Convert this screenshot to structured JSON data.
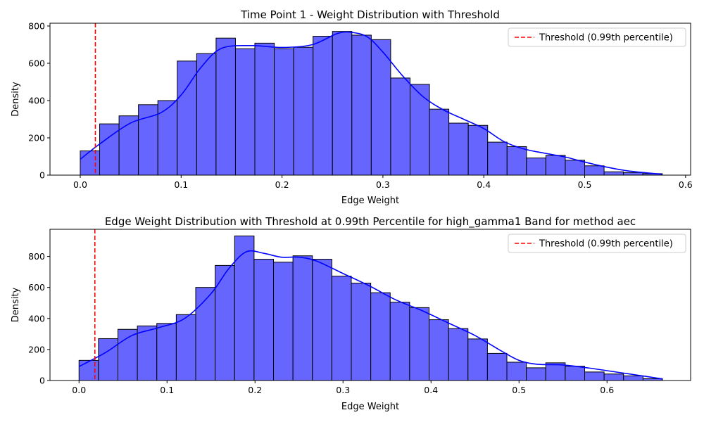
{
  "chart_data": [
    {
      "type": "histogram",
      "title": "Time Point 1 - Weight Distribution with Threshold",
      "xlabel": "Edge Weight",
      "ylabel": "Density",
      "xlim": [
        -0.03,
        0.605
      ],
      "ylim": [
        0,
        815
      ],
      "xticks": [
        0.0,
        0.1,
        0.2,
        0.3,
        0.4,
        0.5,
        0.6
      ],
      "xtick_labels": [
        "0.0",
        "0.1",
        "0.2",
        "0.3",
        "0.4",
        "0.5",
        "0.6"
      ],
      "yticks": [
        0,
        200,
        400,
        600,
        800
      ],
      "ytick_labels": [
        "0",
        "200",
        "400",
        "600",
        "800"
      ],
      "bin_start": 0.0,
      "bin_width": 0.01923,
      "values": [
        130,
        275,
        318,
        378,
        400,
        612,
        652,
        735,
        678,
        708,
        678,
        686,
        745,
        771,
        751,
        727,
        521,
        487,
        354,
        279,
        267,
        177,
        153,
        92,
        106,
        80,
        50,
        18,
        14,
        8
      ],
      "kde": [
        [
          0.0,
          85
        ],
        [
          0.02,
          170
        ],
        [
          0.05,
          280
        ],
        [
          0.08,
          335
        ],
        [
          0.1,
          430
        ],
        [
          0.12,
          580
        ],
        [
          0.14,
          680
        ],
        [
          0.17,
          695
        ],
        [
          0.2,
          685
        ],
        [
          0.23,
          700
        ],
        [
          0.255,
          760
        ],
        [
          0.27,
          765
        ],
        [
          0.285,
          740
        ],
        [
          0.3,
          660
        ],
        [
          0.32,
          530
        ],
        [
          0.34,
          420
        ],
        [
          0.36,
          350
        ],
        [
          0.38,
          300
        ],
        [
          0.4,
          250
        ],
        [
          0.42,
          180
        ],
        [
          0.44,
          140
        ],
        [
          0.46,
          118
        ],
        [
          0.48,
          98
        ],
        [
          0.5,
          70
        ],
        [
          0.52,
          45
        ],
        [
          0.54,
          25
        ],
        [
          0.56,
          13
        ],
        [
          0.577,
          5
        ]
      ],
      "threshold": 0.015,
      "legend": {
        "label": "Threshold (0.99th percentile)",
        "position": "top-right"
      },
      "colors": {
        "bar_fill": "#6666ff",
        "bar_edge": "#000000",
        "kde": "#0000ff",
        "threshold": "#ff0000"
      },
      "grid": false
    },
    {
      "type": "histogram",
      "title": "Edge Weight Distribution with Threshold at 0.99th Percentile for high_gamma1 Band for method aec",
      "xlabel": "Edge Weight",
      "ylabel": "Density",
      "xlim": [
        -0.033,
        0.695
      ],
      "ylim": [
        0,
        975
      ],
      "xticks": [
        0.0,
        0.1,
        0.2,
        0.3,
        0.4,
        0.5,
        0.6
      ],
      "xtick_labels": [
        "0.0",
        "0.1",
        "0.2",
        "0.3",
        "0.4",
        "0.5",
        "0.6"
      ],
      "yticks": [
        0,
        200,
        400,
        600,
        800
      ],
      "ytick_labels": [
        "0",
        "200",
        "400",
        "600",
        "800"
      ],
      "bin_start": 0.0,
      "bin_width": 0.0221,
      "values": [
        130,
        270,
        330,
        352,
        368,
        425,
        600,
        742,
        932,
        782,
        763,
        804,
        782,
        673,
        628,
        566,
        505,
        470,
        392,
        335,
        268,
        175,
        118,
        82,
        114,
        92,
        55,
        42,
        30,
        12
      ],
      "kde": [
        [
          0.0,
          90
        ],
        [
          0.03,
          180
        ],
        [
          0.06,
          290
        ],
        [
          0.09,
          340
        ],
        [
          0.12,
          400
        ],
        [
          0.15,
          560
        ],
        [
          0.17,
          720
        ],
        [
          0.19,
          830
        ],
        [
          0.21,
          820
        ],
        [
          0.23,
          795
        ],
        [
          0.25,
          795
        ],
        [
          0.27,
          770
        ],
        [
          0.3,
          690
        ],
        [
          0.33,
          610
        ],
        [
          0.36,
          520
        ],
        [
          0.39,
          450
        ],
        [
          0.42,
          370
        ],
        [
          0.45,
          290
        ],
        [
          0.48,
          190
        ],
        [
          0.5,
          130
        ],
        [
          0.52,
          105
        ],
        [
          0.55,
          100
        ],
        [
          0.58,
          80
        ],
        [
          0.61,
          55
        ],
        [
          0.64,
          30
        ],
        [
          0.663,
          10
        ]
      ],
      "threshold": 0.018,
      "legend": {
        "label": "Threshold (0.99th percentile)",
        "position": "top-right"
      },
      "colors": {
        "bar_fill": "#6666ff",
        "bar_edge": "#000000",
        "kde": "#0000ff",
        "threshold": "#ff0000"
      },
      "grid": false
    }
  ]
}
